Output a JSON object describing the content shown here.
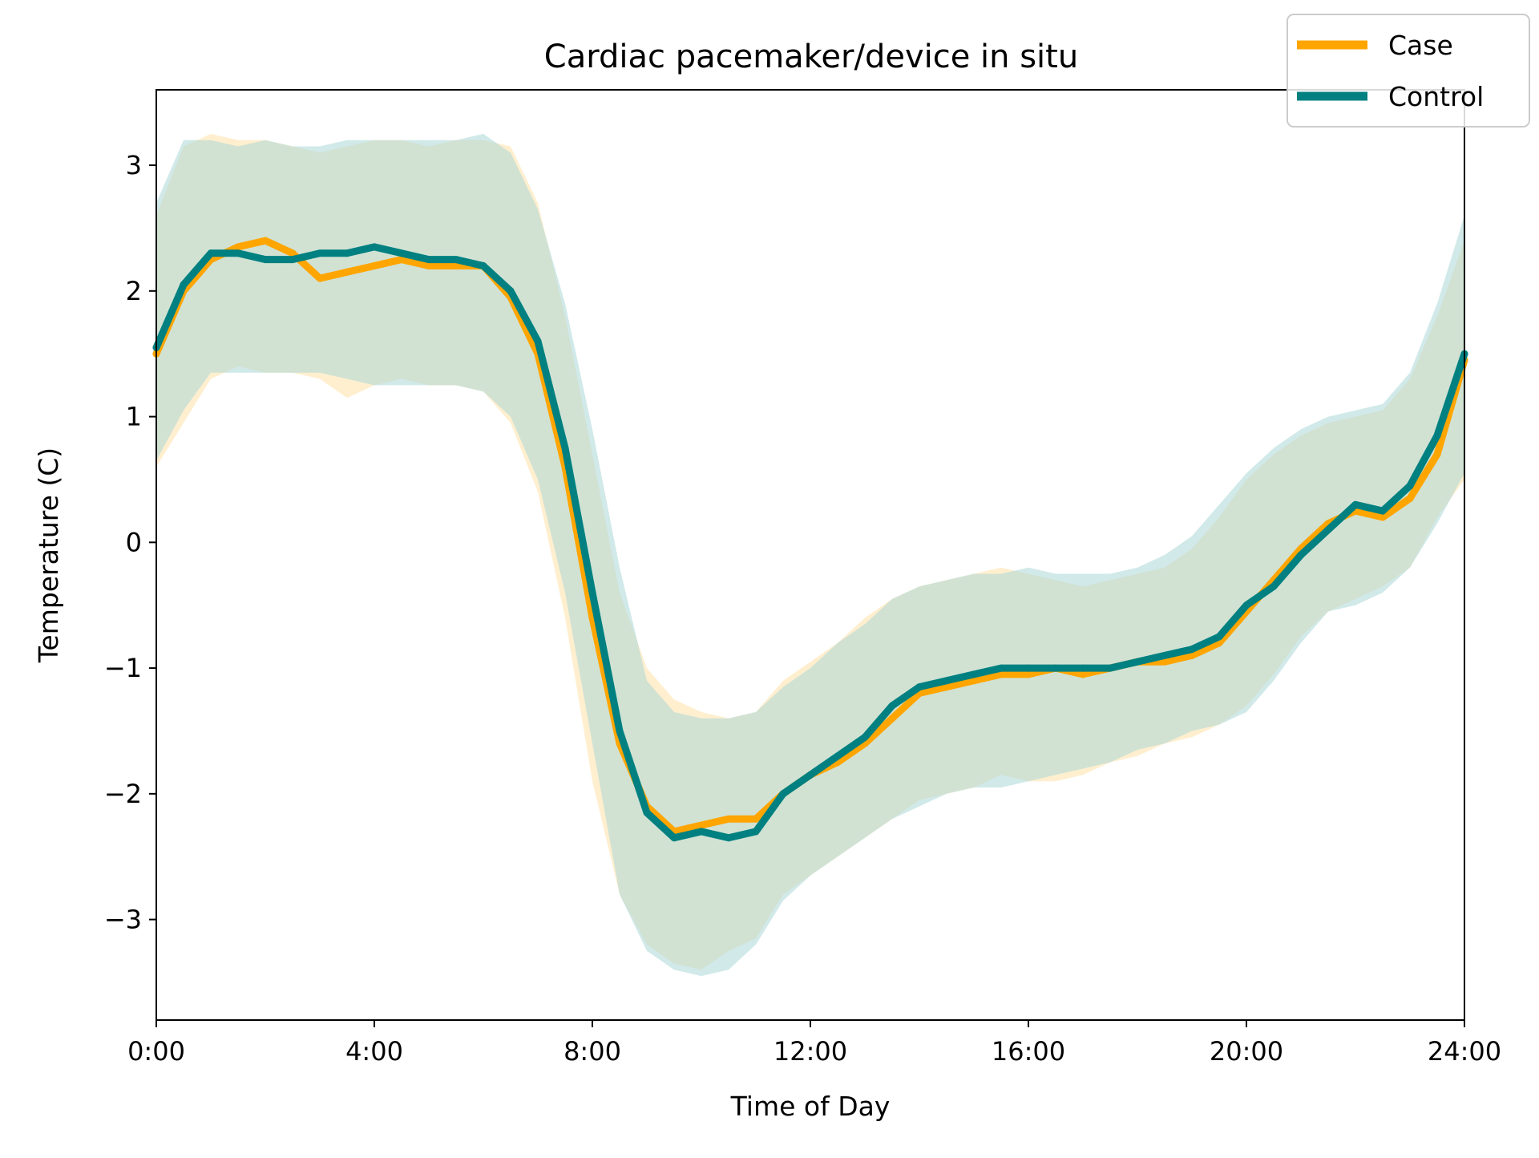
{
  "chart_data": {
    "type": "line",
    "title": "Cardiac pacemaker/device in situ",
    "xlabel": "Time of Day",
    "ylabel": "Temperature (C)",
    "xlim": [
      0,
      24
    ],
    "ylim": [
      -3.8,
      3.6
    ],
    "x_ticks": [
      {
        "value": 0,
        "label": "0:00"
      },
      {
        "value": 4,
        "label": "4:00"
      },
      {
        "value": 8,
        "label": "8:00"
      },
      {
        "value": 12,
        "label": "12:00"
      },
      {
        "value": 16,
        "label": "16:00"
      },
      {
        "value": 20,
        "label": "20:00"
      },
      {
        "value": 24,
        "label": "24:00"
      }
    ],
    "y_ticks": [
      {
        "value": 3,
        "label": "3"
      },
      {
        "value": 2,
        "label": "2"
      },
      {
        "value": 1,
        "label": "1"
      },
      {
        "value": 0,
        "label": "0"
      },
      {
        "value": -1,
        "label": "−1"
      },
      {
        "value": -2,
        "label": "−2"
      },
      {
        "value": -3,
        "label": "−3"
      }
    ],
    "grid": false,
    "legend_position": "top-right",
    "x": [
      0,
      0.5,
      1,
      1.5,
      2,
      2.5,
      3,
      3.5,
      4,
      4.5,
      5,
      5.5,
      6,
      6.5,
      7,
      7.5,
      8,
      8.5,
      9,
      9.5,
      10,
      10.5,
      11,
      11.5,
      12,
      12.5,
      13,
      13.5,
      14,
      14.5,
      15,
      15.5,
      16,
      16.5,
      17,
      17.5,
      18,
      18.5,
      19,
      19.5,
      20,
      20.5,
      21,
      21.5,
      22,
      22.5,
      23,
      23.5,
      24
    ],
    "series": [
      {
        "name": "Case",
        "color": "#FFA500",
        "band_color": "#FFE9BF",
        "values": [
          1.5,
          2.0,
          2.25,
          2.35,
          2.4,
          2.3,
          2.1,
          2.15,
          2.2,
          2.25,
          2.2,
          2.2,
          2.2,
          1.95,
          1.5,
          0.6,
          -0.6,
          -1.6,
          -2.1,
          -2.3,
          -2.25,
          -2.2,
          -2.2,
          -2.0,
          -1.85,
          -1.75,
          -1.6,
          -1.4,
          -1.2,
          -1.15,
          -1.1,
          -1.05,
          -1.05,
          -1.0,
          -1.05,
          -1.0,
          -0.95,
          -0.95,
          -0.9,
          -0.8,
          -0.55,
          -0.3,
          -0.05,
          0.15,
          0.25,
          0.2,
          0.35,
          0.7,
          1.45
        ],
        "upper": [
          2.6,
          3.15,
          3.25,
          3.2,
          3.2,
          3.15,
          3.1,
          3.15,
          3.2,
          3.2,
          3.15,
          3.2,
          3.2,
          3.15,
          2.7,
          1.8,
          0.7,
          -0.4,
          -1.0,
          -1.25,
          -1.35,
          -1.4,
          -1.35,
          -1.1,
          -0.95,
          -0.8,
          -0.6,
          -0.45,
          -0.35,
          -0.3,
          -0.25,
          -0.2,
          -0.25,
          -0.3,
          -0.35,
          -0.3,
          -0.25,
          -0.2,
          -0.05,
          0.2,
          0.5,
          0.7,
          0.85,
          0.95,
          1.0,
          1.05,
          1.3,
          1.8,
          2.4
        ],
        "lower": [
          0.6,
          0.95,
          1.3,
          1.4,
          1.35,
          1.35,
          1.3,
          1.15,
          1.25,
          1.3,
          1.25,
          1.25,
          1.2,
          0.95,
          0.4,
          -0.6,
          -1.9,
          -2.8,
          -3.2,
          -3.35,
          -3.4,
          -3.25,
          -3.15,
          -2.8,
          -2.65,
          -2.5,
          -2.35,
          -2.2,
          -2.05,
          -2.0,
          -1.95,
          -1.85,
          -1.9,
          -1.9,
          -1.85,
          -1.75,
          -1.7,
          -1.6,
          -1.55,
          -1.45,
          -1.3,
          -1.05,
          -0.75,
          -0.55,
          -0.45,
          -0.35,
          -0.2,
          0.2,
          0.5
        ]
      },
      {
        "name": "Control",
        "color": "#008080",
        "band_color": "#ACD7D7",
        "values": [
          1.55,
          2.05,
          2.3,
          2.3,
          2.25,
          2.25,
          2.3,
          2.3,
          2.35,
          2.3,
          2.25,
          2.25,
          2.2,
          2.0,
          1.6,
          0.75,
          -0.4,
          -1.5,
          -2.15,
          -2.35,
          -2.3,
          -2.35,
          -2.3,
          -2.0,
          -1.85,
          -1.7,
          -1.55,
          -1.3,
          -1.15,
          -1.1,
          -1.05,
          -1.0,
          -1.0,
          -1.0,
          -1.0,
          -1.0,
          -0.95,
          -0.9,
          -0.85,
          -0.75,
          -0.5,
          -0.35,
          -0.1,
          0.1,
          0.3,
          0.25,
          0.45,
          0.85,
          1.5
        ],
        "upper": [
          2.7,
          3.2,
          3.2,
          3.15,
          3.2,
          3.15,
          3.15,
          3.2,
          3.2,
          3.2,
          3.2,
          3.2,
          3.25,
          3.1,
          2.65,
          1.9,
          0.9,
          -0.2,
          -1.1,
          -1.35,
          -1.4,
          -1.4,
          -1.35,
          -1.15,
          -1.0,
          -0.8,
          -0.65,
          -0.45,
          -0.35,
          -0.3,
          -0.25,
          -0.25,
          -0.2,
          -0.25,
          -0.25,
          -0.25,
          -0.2,
          -0.1,
          0.05,
          0.3,
          0.55,
          0.75,
          0.9,
          1.0,
          1.05,
          1.1,
          1.35,
          1.9,
          2.6
        ],
        "lower": [
          0.65,
          1.05,
          1.35,
          1.35,
          1.35,
          1.35,
          1.35,
          1.3,
          1.25,
          1.25,
          1.25,
          1.25,
          1.2,
          1.0,
          0.5,
          -0.4,
          -1.6,
          -2.8,
          -3.25,
          -3.4,
          -3.45,
          -3.4,
          -3.2,
          -2.85,
          -2.65,
          -2.5,
          -2.35,
          -2.2,
          -2.1,
          -2.0,
          -1.95,
          -1.95,
          -1.9,
          -1.85,
          -1.8,
          -1.75,
          -1.65,
          -1.6,
          -1.5,
          -1.45,
          -1.35,
          -1.1,
          -0.8,
          -0.55,
          -0.5,
          -0.4,
          -0.2,
          0.15,
          0.55
        ]
      }
    ]
  }
}
